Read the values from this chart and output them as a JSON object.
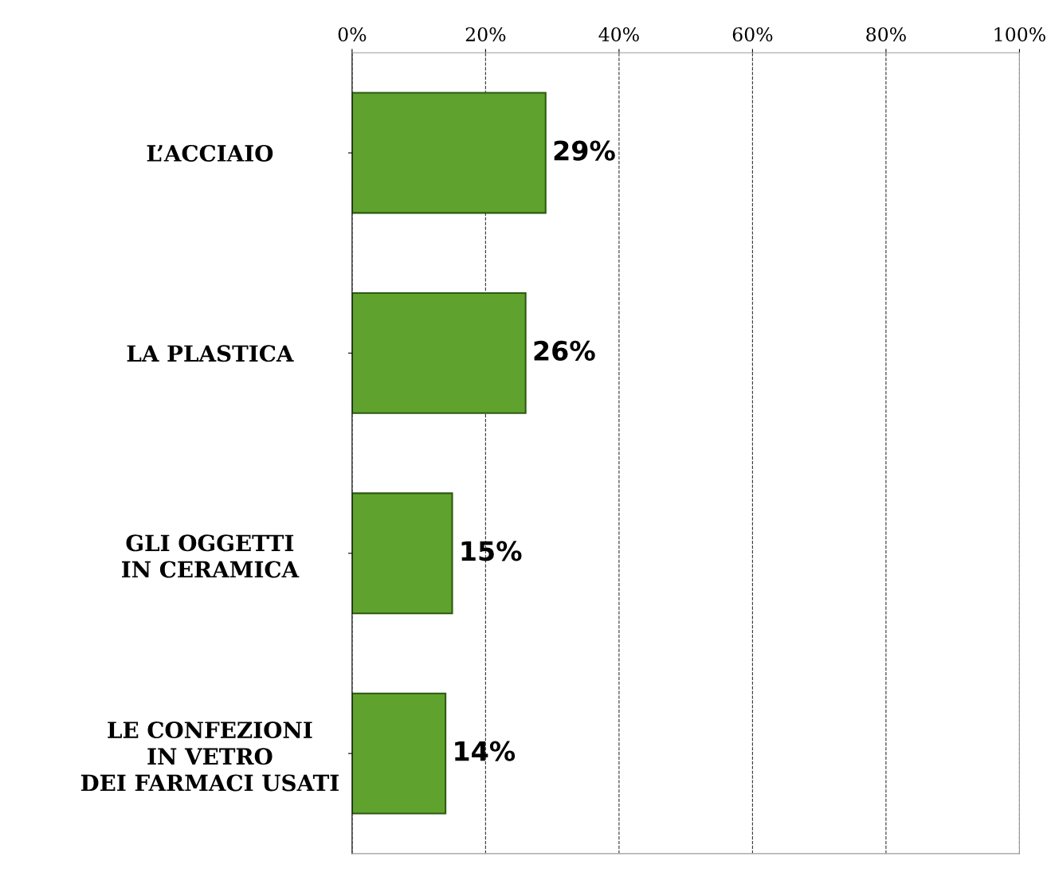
{
  "chart_data": {
    "type": "bar",
    "orientation": "horizontal",
    "categories": [
      "L’ACCIAIO",
      "LA PLASTICA",
      "GLI OGGETTI\nIN CERAMICA",
      "LE CONFEZIONI\nIN VETRO\nDEI FARMACI USATI"
    ],
    "values": [
      29,
      26,
      15,
      14
    ],
    "value_labels": [
      "29%",
      "26%",
      "15%",
      "14%"
    ],
    "color": "#5fa32e",
    "xlim": [
      0,
      100
    ],
    "xticks": [
      {
        "value": 0,
        "label": "0%"
      },
      {
        "value": 20,
        "label": "20%"
      },
      {
        "value": 40,
        "label": "40%"
      },
      {
        "value": 60,
        "label": "60%"
      },
      {
        "value": 80,
        "label": "80%"
      },
      {
        "value": 100,
        "label": "100%"
      }
    ],
    "grid": "x"
  }
}
